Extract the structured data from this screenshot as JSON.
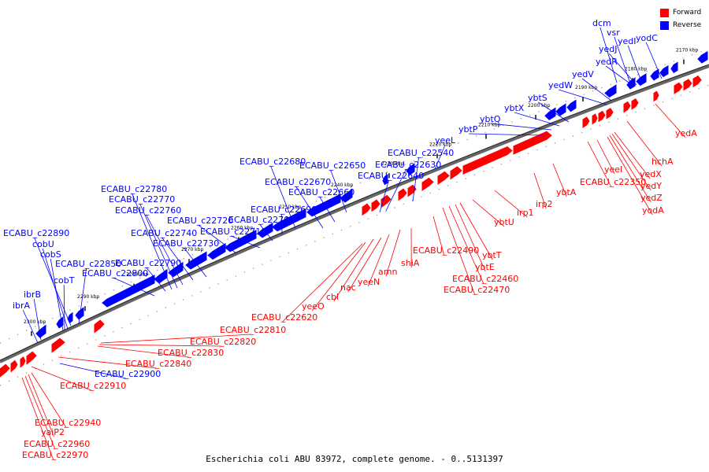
{
  "caption": "Escherichia coli ABU 83972, complete genome. - 0..5131397",
  "legend": {
    "forward": {
      "label": "Forward",
      "color": "#ff0000"
    },
    "reverse": {
      "label": "Reverse",
      "color": "#0000ff"
    }
  },
  "ticks": [
    "2170 kbp",
    "2180 kbp",
    "2190 kbp",
    "2200 kbp",
    "2210 kbp",
    "2220 kbp",
    "2230 kbp",
    "2240 kbp",
    "2250 kbp",
    "2260 kbp",
    "2270 kbp",
    "2280 kbp",
    "2290 kbp",
    "2300 kbp"
  ],
  "reverse_genes": [
    "dcm",
    "vsr",
    "yedI",
    "yodC",
    "yedJ",
    "yedR",
    "yedV",
    "yedW",
    "ybtS",
    "ybtX",
    "ybtQ",
    "ybtP",
    "yeeL",
    "ECABU_c22540",
    "ECABU_c22630",
    "ECABU_c22640",
    "ECABU_c22650",
    "ECABU_c22660",
    "ECABU_c22670",
    "ECABU_c22680",
    "ECABU_c22690",
    "ECABU_c22700",
    "ECABU_c22710",
    "ECABU_c22720",
    "ECABU_c22730",
    "ECABU_c22740",
    "ECABU_c22760",
    "ECABU_c22770",
    "ECABU_c22780",
    "ECABU_c22790",
    "ECABU_c22800",
    "ECABU_c22850",
    "ECABU_c22890",
    "cobU",
    "cobS",
    "cobT",
    "ibrB",
    "ibrA",
    "ECABU_c22900"
  ],
  "forward_genes": [
    "yedA",
    "hchA",
    "yeeI",
    "ECABU_c22350",
    "yedX",
    "yedY",
    "yedZ",
    "yodA",
    "ybtA",
    "irp2",
    "irp1",
    "ybtU",
    "ybtT",
    "ybtE",
    "ECABU_c22460",
    "ECABU_c22470",
    "ECABU_c22490",
    "shiA",
    "amn",
    "yeeN",
    "nac",
    "cbl",
    "yeeO",
    "ECABU_c22620",
    "ECABU_c22810",
    "ECABU_c22820",
    "ECABU_c22830",
    "ECABU_c22840",
    "ECABU_c22910",
    "ECABU_c22940",
    "yaiP2",
    "ECABU_c22960",
    "ECABU_c22970"
  ]
}
